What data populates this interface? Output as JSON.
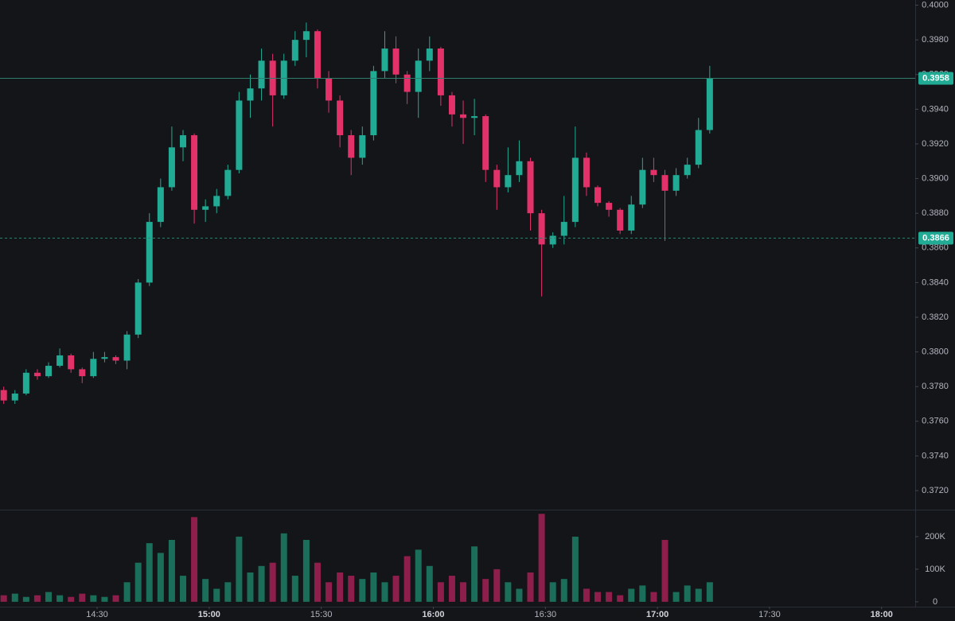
{
  "chart_data": {
    "type": "candlestick",
    "x": [
      "14:05",
      "14:08",
      "14:11",
      "14:14",
      "14:17",
      "14:20",
      "14:23",
      "14:26",
      "14:29",
      "14:32",
      "14:35",
      "14:38",
      "14:41",
      "14:44",
      "14:47",
      "14:50",
      "14:53",
      "14:56",
      "14:59",
      "15:02",
      "15:05",
      "15:08",
      "15:11",
      "15:14",
      "15:17",
      "15:20",
      "15:23",
      "15:26",
      "15:29",
      "15:32",
      "15:35",
      "15:38",
      "15:41",
      "15:44",
      "15:47",
      "15:50",
      "15:53",
      "15:56",
      "15:59",
      "16:02",
      "16:05",
      "16:08",
      "16:11",
      "16:14",
      "16:17",
      "16:20",
      "16:23",
      "16:26",
      "16:29",
      "16:32",
      "16:35",
      "16:38",
      "16:41",
      "16:44",
      "16:47",
      "16:50",
      "16:53",
      "16:56",
      "16:59",
      "17:02",
      "17:05",
      "17:08",
      "17:11",
      "17:14"
    ],
    "open": [
      0.3778,
      0.3772,
      0.3776,
      0.3788,
      0.3786,
      0.3792,
      0.3798,
      0.379,
      0.3786,
      0.3796,
      0.3797,
      0.3795,
      0.381,
      0.384,
      0.3875,
      0.3895,
      0.3918,
      0.3925,
      0.3882,
      0.3884,
      0.389,
      0.3905,
      0.3945,
      0.3952,
      0.3968,
      0.3948,
      0.3968,
      0.398,
      0.3985,
      0.3958,
      0.3945,
      0.3925,
      0.3912,
      0.3925,
      0.3962,
      0.3975,
      0.396,
      0.395,
      0.3968,
      0.3975,
      0.3948,
      0.3937,
      0.3935,
      0.3936,
      0.3905,
      0.3895,
      0.3902,
      0.391,
      0.388,
      0.3862,
      0.3867,
      0.3875,
      0.3912,
      0.3895,
      0.3886,
      0.3882,
      0.387,
      0.3885,
      0.3905,
      0.3902,
      0.3893,
      0.3902,
      0.3908,
      0.3928
    ],
    "high": [
      0.378,
      0.3778,
      0.379,
      0.379,
      0.3794,
      0.3802,
      0.3799,
      0.3791,
      0.38,
      0.38,
      0.3798,
      0.3812,
      0.3842,
      0.388,
      0.39,
      0.393,
      0.3928,
      0.3926,
      0.3888,
      0.3894,
      0.3908,
      0.395,
      0.396,
      0.3975,
      0.3972,
      0.3972,
      0.3985,
      0.399,
      0.3986,
      0.3962,
      0.3948,
      0.3928,
      0.393,
      0.3965,
      0.3985,
      0.3982,
      0.3962,
      0.3975,
      0.3982,
      0.3976,
      0.395,
      0.3945,
      0.3946,
      0.3937,
      0.3908,
      0.3918,
      0.3922,
      0.3912,
      0.3882,
      0.3869,
      0.389,
      0.393,
      0.3915,
      0.3896,
      0.3887,
      0.3883,
      0.389,
      0.3912,
      0.3912,
      0.3905,
      0.3906,
      0.3912,
      0.3935,
      0.3965
    ],
    "low": [
      0.377,
      0.377,
      0.3775,
      0.3784,
      0.3785,
      0.3791,
      0.3788,
      0.3782,
      0.3785,
      0.3794,
      0.3793,
      0.379,
      0.3808,
      0.3838,
      0.3872,
      0.3893,
      0.391,
      0.3874,
      0.3875,
      0.388,
      0.3888,
      0.3903,
      0.3935,
      0.3945,
      0.393,
      0.3946,
      0.3965,
      0.397,
      0.3952,
      0.3938,
      0.3918,
      0.3902,
      0.3908,
      0.3922,
      0.3958,
      0.3955,
      0.3943,
      0.3935,
      0.3962,
      0.3942,
      0.393,
      0.392,
      0.3925,
      0.3898,
      0.3882,
      0.3892,
      0.3898,
      0.387,
      0.3832,
      0.386,
      0.3862,
      0.3872,
      0.389,
      0.3884,
      0.3878,
      0.3868,
      0.3868,
      0.3883,
      0.3898,
      0.3864,
      0.389,
      0.39,
      0.3906,
      0.3926
    ],
    "close": [
      0.3772,
      0.3776,
      0.3788,
      0.3786,
      0.3792,
      0.3798,
      0.379,
      0.3786,
      0.3796,
      0.3797,
      0.3795,
      0.381,
      0.384,
      0.3875,
      0.3895,
      0.3918,
      0.3925,
      0.3882,
      0.3884,
      0.389,
      0.3905,
      0.3945,
      0.3952,
      0.3968,
      0.3948,
      0.3968,
      0.398,
      0.3985,
      0.3958,
      0.3945,
      0.3925,
      0.3912,
      0.3925,
      0.3962,
      0.3975,
      0.396,
      0.395,
      0.3968,
      0.3975,
      0.3948,
      0.3937,
      0.3935,
      0.3936,
      0.3905,
      0.3895,
      0.3902,
      0.391,
      0.388,
      0.3862,
      0.3867,
      0.3875,
      0.3912,
      0.3895,
      0.3886,
      0.3882,
      0.387,
      0.3885,
      0.3905,
      0.3902,
      0.3893,
      0.3902,
      0.3908,
      0.3928,
      0.3958
    ],
    "volume": [
      20000,
      25000,
      15000,
      20000,
      30000,
      20000,
      15000,
      25000,
      20000,
      15000,
      20000,
      60000,
      120000,
      180000,
      150000,
      190000,
      80000,
      260000,
      70000,
      40000,
      60000,
      200000,
      90000,
      110000,
      120000,
      210000,
      80000,
      190000,
      120000,
      60000,
      90000,
      80000,
      70000,
      90000,
      60000,
      80000,
      140000,
      160000,
      110000,
      60000,
      80000,
      60000,
      170000,
      70000,
      100000,
      60000,
      40000,
      90000,
      270000,
      60000,
      70000,
      200000,
      40000,
      30000,
      30000,
      20000,
      40000,
      50000,
      30000,
      190000,
      30000,
      50000,
      40000,
      60000
    ],
    "up_color": "#22ab94",
    "down_color": "#e3326a",
    "volume_up_color": "#1b6e5a",
    "volume_down_color": "#8e1f4c",
    "xlim": [
      "14:04",
      "18:09"
    ],
    "xticks": [
      "14:30",
      "15:00",
      "15:30",
      "16:00",
      "16:30",
      "17:00",
      "17:30",
      "18:00"
    ],
    "ylim": [
      0.3709,
      0.4003
    ],
    "yticks": [
      {
        "value": 0.372,
        "label": "0.3720"
      },
      {
        "value": 0.374,
        "label": "0.3740"
      },
      {
        "value": 0.376,
        "label": "0.3760"
      },
      {
        "value": 0.378,
        "label": "0.3780"
      },
      {
        "value": 0.38,
        "label": "0.3800"
      },
      {
        "value": 0.382,
        "label": "0.3820"
      },
      {
        "value": 0.384,
        "label": "0.3840"
      },
      {
        "value": 0.386,
        "label": "0.3860"
      },
      {
        "value": 0.388,
        "label": "0.3880"
      },
      {
        "value": 0.39,
        "label": "0.3900"
      },
      {
        "value": 0.392,
        "label": "0.3920"
      },
      {
        "value": 0.394,
        "label": "0.3940"
      },
      {
        "value": 0.396,
        "label": "0.3960"
      },
      {
        "value": 0.398,
        "label": "0.3980"
      },
      {
        "value": 0.4,
        "label": "0.4000"
      }
    ],
    "volume_ylim": [
      -15000,
      273000
    ],
    "volume_yticks": [
      0,
      {
        "value": 100000,
        "label": "100K"
      },
      {
        "value": 200000,
        "label": "200K"
      }
    ],
    "price_lines": [
      {
        "value": 0.3958,
        "label": "0.3958",
        "style": "solid"
      },
      {
        "value": 0.3866,
        "label": "0.3866",
        "style": "dashed"
      }
    ]
  }
}
